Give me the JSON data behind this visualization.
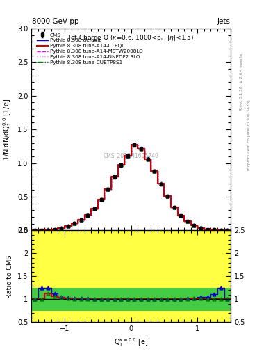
{
  "title_top_left": "8000 GeV pp",
  "title_top_right": "Jets",
  "plot_title": "Jet Charge Q (κ=0.6, 1000<p_{T}, |η|<1.5)",
  "xlabel": "Q$_1^{\\kappa=0.6}$ [e]",
  "ylabel_main": "1/N dN/dQ$_1^{0.6}$ [1/e]",
  "ylabel_ratio": "Ratio to CMS",
  "right_label_top": "Rivet 3.1.10, ≥ 2.6M events",
  "right_label_bot": "mcplots.cern.ch [arXiv:1306.3436]",
  "watermark": "CMS_2017_I1605749",
  "xlim": [
    -1.5,
    1.5
  ],
  "ylim_main": [
    0.0,
    3.0
  ],
  "ylim_ratio": [
    0.5,
    2.5
  ],
  "cms_x": [
    -1.45,
    -1.35,
    -1.25,
    -1.15,
    -1.05,
    -0.95,
    -0.85,
    -0.75,
    -0.65,
    -0.55,
    -0.45,
    -0.35,
    -0.25,
    -0.15,
    -0.05,
    0.05,
    0.15,
    0.25,
    0.35,
    0.45,
    0.55,
    0.65,
    0.75,
    0.85,
    0.95,
    1.05,
    1.15,
    1.25,
    1.35,
    1.45
  ],
  "cms_y": [
    0.003,
    0.004,
    0.008,
    0.016,
    0.035,
    0.068,
    0.105,
    0.155,
    0.225,
    0.325,
    0.455,
    0.615,
    0.795,
    0.97,
    1.11,
    1.27,
    1.215,
    1.06,
    0.88,
    0.69,
    0.505,
    0.345,
    0.22,
    0.14,
    0.075,
    0.038,
    0.018,
    0.009,
    0.004,
    0.002
  ],
  "cms_yerr": [
    0.001,
    0.001,
    0.002,
    0.003,
    0.005,
    0.008,
    0.01,
    0.012,
    0.015,
    0.018,
    0.02,
    0.022,
    0.022,
    0.022,
    0.022,
    0.022,
    0.022,
    0.022,
    0.022,
    0.02,
    0.018,
    0.015,
    0.012,
    0.01,
    0.007,
    0.005,
    0.003,
    0.002,
    0.001,
    0.001
  ],
  "pythia_default_y": [
    0.003,
    0.005,
    0.01,
    0.018,
    0.037,
    0.07,
    0.107,
    0.158,
    0.228,
    0.328,
    0.458,
    0.618,
    0.798,
    0.973,
    1.113,
    1.273,
    1.218,
    1.063,
    0.883,
    0.693,
    0.508,
    0.348,
    0.222,
    0.142,
    0.077,
    0.04,
    0.019,
    0.01,
    0.005,
    0.002
  ],
  "cteql1_y": [
    0.003,
    0.004,
    0.009,
    0.017,
    0.036,
    0.069,
    0.106,
    0.156,
    0.226,
    0.326,
    0.456,
    0.616,
    0.796,
    0.971,
    1.111,
    1.271,
    1.216,
    1.061,
    0.881,
    0.691,
    0.506,
    0.346,
    0.221,
    0.141,
    0.076,
    0.039,
    0.018,
    0.009,
    0.004,
    0.002
  ],
  "mstw_y": [
    0.003,
    0.004,
    0.009,
    0.017,
    0.036,
    0.069,
    0.106,
    0.156,
    0.226,
    0.326,
    0.456,
    0.616,
    0.796,
    0.971,
    1.111,
    1.271,
    1.216,
    1.061,
    0.881,
    0.691,
    0.506,
    0.346,
    0.221,
    0.141,
    0.076,
    0.039,
    0.018,
    0.009,
    0.004,
    0.002
  ],
  "nnpdf_y": [
    0.003,
    0.004,
    0.009,
    0.017,
    0.036,
    0.069,
    0.106,
    0.156,
    0.226,
    0.326,
    0.456,
    0.616,
    0.796,
    0.971,
    1.111,
    1.271,
    1.216,
    1.061,
    0.881,
    0.691,
    0.506,
    0.346,
    0.221,
    0.141,
    0.076,
    0.039,
    0.018,
    0.009,
    0.004,
    0.002
  ],
  "cuetp_y": [
    0.003,
    0.004,
    0.009,
    0.017,
    0.036,
    0.069,
    0.106,
    0.156,
    0.226,
    0.326,
    0.456,
    0.616,
    0.796,
    0.971,
    1.111,
    1.271,
    1.216,
    1.061,
    0.881,
    0.691,
    0.506,
    0.346,
    0.221,
    0.141,
    0.076,
    0.039,
    0.018,
    0.009,
    0.004,
    0.002
  ],
  "color_cms": "#000000",
  "color_default": "#0000cc",
  "color_cteql1": "#cc0000",
  "color_mstw": "#ff00ff",
  "color_nnpdf": "#ff88cc",
  "color_cuetp": "#007700",
  "ratio_yellow": "#ffff44",
  "ratio_green": "#44cc44",
  "bin_width": 0.1
}
